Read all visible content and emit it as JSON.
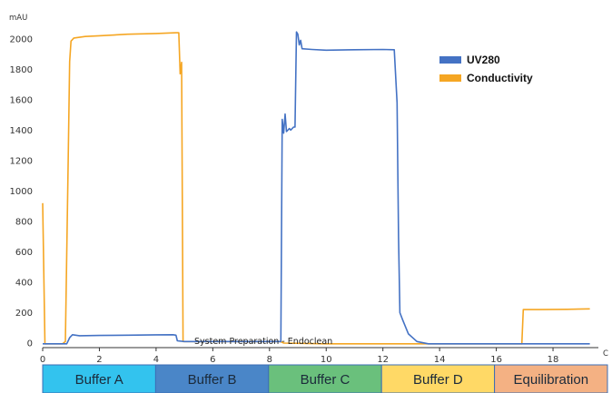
{
  "chart_data": {
    "type": "line",
    "ylabel": "mAU",
    "xlabel": "C",
    "xlim": [
      0,
      19.6
    ],
    "ylim": [
      -30,
      2100
    ],
    "xticks": [
      0,
      2,
      4,
      6,
      8,
      10,
      12,
      14,
      16,
      18
    ],
    "yticks": [
      0,
      200,
      400,
      600,
      800,
      1000,
      1200,
      1400,
      1600,
      1800,
      2000
    ],
    "grid": false,
    "legend_position": "top-right",
    "annotation": "System Preparation - Endoclean",
    "series": [
      {
        "name": "UV280",
        "color": "#4472c4",
        "points": [
          [
            0,
            -5
          ],
          [
            0.85,
            -5
          ],
          [
            0.95,
            35
          ],
          [
            1.05,
            55
          ],
          [
            1.3,
            48
          ],
          [
            2.0,
            50
          ],
          [
            3.0,
            52
          ],
          [
            4.0,
            54
          ],
          [
            4.6,
            55
          ],
          [
            4.7,
            52
          ],
          [
            4.75,
            15
          ],
          [
            5.0,
            10
          ],
          [
            7.0,
            10
          ],
          [
            8.0,
            10
          ],
          [
            8.4,
            10
          ],
          [
            8.45,
            1470
          ],
          [
            8.5,
            1380
          ],
          [
            8.55,
            1505
          ],
          [
            8.6,
            1390
          ],
          [
            8.7,
            1410
          ],
          [
            8.75,
            1400
          ],
          [
            8.85,
            1420
          ],
          [
            8.9,
            1420
          ],
          [
            8.95,
            2045
          ],
          [
            9.0,
            2030
          ],
          [
            9.05,
            1960
          ],
          [
            9.1,
            1990
          ],
          [
            9.15,
            1935
          ],
          [
            9.5,
            1930
          ],
          [
            10.0,
            1925
          ],
          [
            11.0,
            1928
          ],
          [
            12.0,
            1930
          ],
          [
            12.4,
            1928
          ],
          [
            12.5,
            1580
          ],
          [
            12.55,
            700
          ],
          [
            12.6,
            200
          ],
          [
            12.7,
            150
          ],
          [
            12.9,
            60
          ],
          [
            13.2,
            10
          ],
          [
            13.6,
            -5
          ],
          [
            15.0,
            -5
          ],
          [
            17.0,
            -5
          ],
          [
            19.3,
            -5
          ]
        ]
      },
      {
        "name": "Conductivity",
        "color": "#f5a623",
        "points": [
          [
            0,
            920
          ],
          [
            0.08,
            -5
          ],
          [
            0.7,
            -5
          ],
          [
            0.8,
            10
          ],
          [
            0.9,
            1200
          ],
          [
            0.95,
            1850
          ],
          [
            1.0,
            1985
          ],
          [
            1.1,
            2005
          ],
          [
            1.5,
            2015
          ],
          [
            2.0,
            2020
          ],
          [
            3.0,
            2030
          ],
          [
            4.0,
            2035
          ],
          [
            4.7,
            2040
          ],
          [
            4.8,
            2040
          ],
          [
            4.85,
            1770
          ],
          [
            4.9,
            1845
          ],
          [
            4.95,
            10
          ],
          [
            5.5,
            10
          ],
          [
            7.0,
            10
          ],
          [
            8.35,
            10
          ],
          [
            8.45,
            5
          ],
          [
            8.5,
            0
          ],
          [
            10.0,
            -5
          ],
          [
            12.0,
            -5
          ],
          [
            14.0,
            -5
          ],
          [
            16.0,
            -5
          ],
          [
            16.9,
            -5
          ],
          [
            16.95,
            220
          ],
          [
            17.5,
            220
          ],
          [
            18.5,
            222
          ],
          [
            19.3,
            225
          ]
        ]
      }
    ],
    "phases": [
      {
        "label": "Buffer A",
        "color": "#33c3ee"
      },
      {
        "label": "Buffer B",
        "color": "#4a86c8"
      },
      {
        "label": "Buffer C",
        "color": "#6ac07c"
      },
      {
        "label": "Buffer D",
        "color": "#ffd966"
      },
      {
        "label": "Equilibration",
        "color": "#f4b183"
      }
    ]
  }
}
